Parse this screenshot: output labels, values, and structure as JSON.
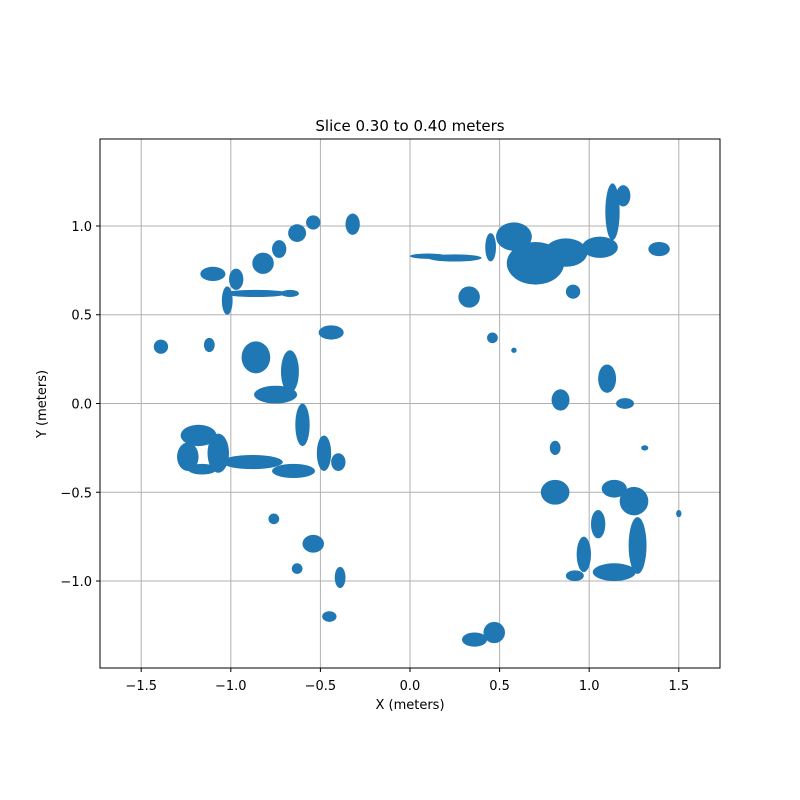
{
  "chart_data": {
    "type": "scatter",
    "title": "Slice 0.30 to 0.40 meters",
    "xlabel": "X (meters)",
    "ylabel": "Y (meters)",
    "xlim": [
      -1.73,
      1.73
    ],
    "ylim": [
      -1.49,
      1.49
    ],
    "xticks": [
      -1.5,
      -1.0,
      -0.5,
      0.0,
      0.5,
      1.0,
      1.5
    ],
    "xtick_labels": [
      "−1.5",
      "−1.0",
      "−0.5",
      "0.0",
      "0.5",
      "1.0",
      "1.5"
    ],
    "yticks": [
      -1.0,
      -0.5,
      0.0,
      0.5,
      1.0
    ],
    "ytick_labels": [
      "−1.0",
      "−0.5",
      "0.0",
      "0.5",
      "1.0"
    ],
    "grid": true,
    "color": "#1f77b4",
    "clusters": [
      {
        "cx": -1.39,
        "cy": 0.32,
        "rx": 0.04,
        "ry": 0.04
      },
      {
        "cx": -1.12,
        "cy": 0.33,
        "rx": 0.03,
        "ry": 0.04
      },
      {
        "cx": -1.1,
        "cy": 0.73,
        "rx": 0.07,
        "ry": 0.04
      },
      {
        "cx": -1.02,
        "cy": 0.58,
        "rx": 0.03,
        "ry": 0.08
      },
      {
        "cx": -0.97,
        "cy": 0.7,
        "rx": 0.04,
        "ry": 0.06
      },
      {
        "cx": -0.86,
        "cy": 0.62,
        "rx": 0.18,
        "ry": 0.02
      },
      {
        "cx": -0.82,
        "cy": 0.79,
        "rx": 0.06,
        "ry": 0.06
      },
      {
        "cx": -0.73,
        "cy": 0.87,
        "rx": 0.04,
        "ry": 0.05
      },
      {
        "cx": -0.63,
        "cy": 0.96,
        "rx": 0.05,
        "ry": 0.05
      },
      {
        "cx": -0.54,
        "cy": 1.02,
        "rx": 0.04,
        "ry": 0.04
      },
      {
        "cx": -0.32,
        "cy": 1.01,
        "rx": 0.04,
        "ry": 0.06
      },
      {
        "cx": -0.67,
        "cy": 0.62,
        "rx": 0.05,
        "ry": 0.02
      },
      {
        "cx": -0.44,
        "cy": 0.4,
        "rx": 0.07,
        "ry": 0.04
      },
      {
        "cx": -0.86,
        "cy": 0.26,
        "rx": 0.08,
        "ry": 0.09
      },
      {
        "cx": -0.67,
        "cy": 0.18,
        "rx": 0.05,
        "ry": 0.12
      },
      {
        "cx": -0.75,
        "cy": 0.05,
        "rx": 0.12,
        "ry": 0.05
      },
      {
        "cx": -0.6,
        "cy": -0.12,
        "rx": 0.04,
        "ry": 0.12
      },
      {
        "cx": -0.48,
        "cy": -0.28,
        "rx": 0.04,
        "ry": 0.1
      },
      {
        "cx": -0.4,
        "cy": -0.33,
        "rx": 0.04,
        "ry": 0.05
      },
      {
        "cx": -1.18,
        "cy": -0.18,
        "rx": 0.1,
        "ry": 0.06
      },
      {
        "cx": -1.24,
        "cy": -0.3,
        "rx": 0.06,
        "ry": 0.08
      },
      {
        "cx": -1.07,
        "cy": -0.28,
        "rx": 0.06,
        "ry": 0.11
      },
      {
        "cx": -1.16,
        "cy": -0.37,
        "rx": 0.08,
        "ry": 0.03
      },
      {
        "cx": -0.88,
        "cy": -0.33,
        "rx": 0.17,
        "ry": 0.04
      },
      {
        "cx": -0.65,
        "cy": -0.38,
        "rx": 0.12,
        "ry": 0.04
      },
      {
        "cx": -0.76,
        "cy": -0.65,
        "rx": 0.03,
        "ry": 0.03
      },
      {
        "cx": -0.54,
        "cy": -0.79,
        "rx": 0.06,
        "ry": 0.05
      },
      {
        "cx": -0.63,
        "cy": -0.93,
        "rx": 0.03,
        "ry": 0.03
      },
      {
        "cx": -0.39,
        "cy": -0.98,
        "rx": 0.03,
        "ry": 0.06
      },
      {
        "cx": -0.45,
        "cy": -1.2,
        "rx": 0.04,
        "ry": 0.03
      },
      {
        "cx": 0.1,
        "cy": 0.83,
        "rx": 0.1,
        "ry": 0.015
      },
      {
        "cx": 0.25,
        "cy": 0.82,
        "rx": 0.15,
        "ry": 0.02
      },
      {
        "cx": 0.45,
        "cy": 0.88,
        "rx": 0.03,
        "ry": 0.08
      },
      {
        "cx": 0.58,
        "cy": 0.94,
        "rx": 0.1,
        "ry": 0.08
      },
      {
        "cx": 0.7,
        "cy": 0.79,
        "rx": 0.16,
        "ry": 0.12
      },
      {
        "cx": 0.87,
        "cy": 0.85,
        "rx": 0.12,
        "ry": 0.08
      },
      {
        "cx": 1.06,
        "cy": 0.88,
        "rx": 0.1,
        "ry": 0.06
      },
      {
        "cx": 1.13,
        "cy": 1.08,
        "rx": 0.04,
        "ry": 0.16
      },
      {
        "cx": 1.19,
        "cy": 1.17,
        "rx": 0.04,
        "ry": 0.06
      },
      {
        "cx": 1.39,
        "cy": 0.87,
        "rx": 0.06,
        "ry": 0.04
      },
      {
        "cx": 0.33,
        "cy": 0.6,
        "rx": 0.06,
        "ry": 0.06
      },
      {
        "cx": 0.46,
        "cy": 0.37,
        "rx": 0.03,
        "ry": 0.03
      },
      {
        "cx": 0.58,
        "cy": 0.3,
        "rx": 0.015,
        "ry": 0.015
      },
      {
        "cx": 0.91,
        "cy": 0.63,
        "rx": 0.04,
        "ry": 0.04
      },
      {
        "cx": 0.84,
        "cy": 0.02,
        "rx": 0.05,
        "ry": 0.06
      },
      {
        "cx": 1.1,
        "cy": 0.14,
        "rx": 0.05,
        "ry": 0.08
      },
      {
        "cx": 1.2,
        "cy": 0.0,
        "rx": 0.05,
        "ry": 0.03
      },
      {
        "cx": 1.31,
        "cy": -0.25,
        "rx": 0.02,
        "ry": 0.015
      },
      {
        "cx": 0.81,
        "cy": -0.25,
        "rx": 0.03,
        "ry": 0.04
      },
      {
        "cx": 0.81,
        "cy": -0.5,
        "rx": 0.08,
        "ry": 0.07
      },
      {
        "cx": 1.14,
        "cy": -0.48,
        "rx": 0.07,
        "ry": 0.05
      },
      {
        "cx": 1.25,
        "cy": -0.55,
        "rx": 0.08,
        "ry": 0.08
      },
      {
        "cx": 1.27,
        "cy": -0.8,
        "rx": 0.05,
        "ry": 0.16
      },
      {
        "cx": 1.05,
        "cy": -0.68,
        "rx": 0.04,
        "ry": 0.08
      },
      {
        "cx": 0.97,
        "cy": -0.85,
        "rx": 0.04,
        "ry": 0.1
      },
      {
        "cx": 1.14,
        "cy": -0.95,
        "rx": 0.12,
        "ry": 0.05
      },
      {
        "cx": 0.92,
        "cy": -0.97,
        "rx": 0.05,
        "ry": 0.03
      },
      {
        "cx": 1.5,
        "cy": -0.62,
        "rx": 0.015,
        "ry": 0.02
      },
      {
        "cx": 0.36,
        "cy": -1.33,
        "rx": 0.07,
        "ry": 0.04
      },
      {
        "cx": 0.47,
        "cy": -1.29,
        "rx": 0.06,
        "ry": 0.06
      }
    ]
  }
}
